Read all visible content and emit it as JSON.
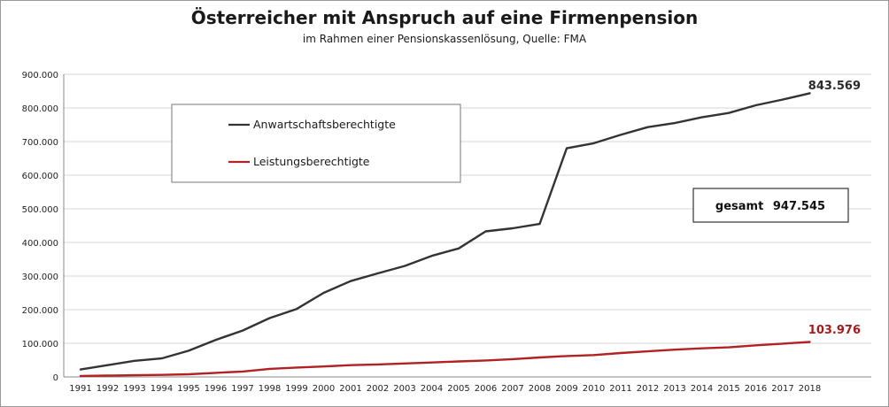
{
  "chart_data": {
    "type": "line",
    "title": "Österreicher mit Anspruch auf eine Firmenpension",
    "subtitle": "im Rahmen einer Pensionskassenlösung, Quelle: FMA",
    "x": [
      "1991",
      "1992",
      "1993",
      "1994",
      "1995",
      "1996",
      "1997",
      "1998",
      "1999",
      "2000",
      "2001",
      "2002",
      "2003",
      "2004",
      "2005",
      "2006",
      "2007",
      "2008",
      "2009",
      "2010",
      "2011",
      "2012",
      "2013",
      "2014",
      "2015",
      "2016",
      "2017",
      "2018"
    ],
    "ylim": [
      0,
      900000
    ],
    "yticks": [
      0,
      100000,
      200000,
      300000,
      400000,
      500000,
      600000,
      700000,
      800000,
      900000
    ],
    "ytick_labels": [
      "0",
      "100.000",
      "200.000",
      "300.000",
      "400.000",
      "500.000",
      "600.000",
      "700.000",
      "800.000",
      "900.000"
    ],
    "grid": true,
    "legend_position": "top-left",
    "series": [
      {
        "name": "Anwartschaftsberechtigte",
        "color": "#333333",
        "values": [
          22000,
          35000,
          48000,
          55000,
          78000,
          110000,
          138000,
          175000,
          202000,
          250000,
          285000,
          308000,
          330000,
          360000,
          382000,
          433000,
          442000,
          455000,
          680000,
          695000,
          720000,
          743000,
          755000,
          772000,
          785000,
          808000,
          825000,
          843569
        ],
        "end_label": "843.569"
      },
      {
        "name": "Leistungsberechtigte",
        "color": "#b22222",
        "values": [
          3000,
          4000,
          5000,
          6000,
          8000,
          12000,
          16000,
          24000,
          28000,
          31000,
          35000,
          37000,
          40000,
          43000,
          46000,
          49000,
          53000,
          58000,
          62000,
          65000,
          71000,
          76000,
          81000,
          85000,
          88000,
          94000,
          99000,
          103976
        ],
        "end_label": "103.976"
      }
    ],
    "annotation": {
      "label": "gesamt",
      "value": "947.545"
    }
  }
}
